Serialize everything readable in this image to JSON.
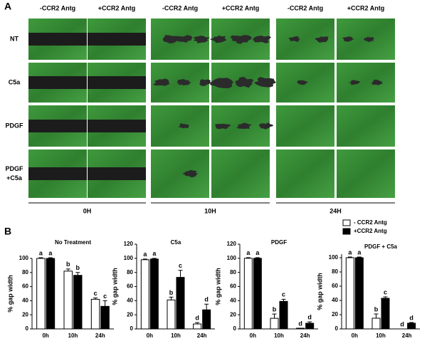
{
  "panel_a": {
    "label": "A",
    "column_headers": [
      "-CCR2 Antg",
      "+CCR2 Antg",
      "-CCR2 Antg",
      "+CCR2 Antg",
      "-CCR2 Antg",
      "+CCR2 Antg"
    ],
    "row_labels": [
      "NT",
      "C5a",
      "PDGF",
      "PDGF\n+C5a"
    ],
    "time_labels": [
      "0H",
      "10H",
      "24H"
    ]
  },
  "panel_b": {
    "label": "B"
  },
  "chart_data": [
    {
      "type": "bar",
      "title": "No Treatment",
      "y_label": "% gap width",
      "categories": [
        "0h",
        "10h",
        "24h"
      ],
      "ylim": [
        0,
        100
      ],
      "yticks": [
        0,
        20,
        40,
        60,
        80,
        100
      ],
      "series": [
        {
          "color": "#ffffff",
          "values": [
            100,
            82,
            42
          ],
          "errors": [
            1,
            3,
            2
          ],
          "letters": [
            "a",
            "b",
            "c"
          ]
        },
        {
          "color": "#000000",
          "values": [
            100,
            76,
            32
          ],
          "errors": [
            1,
            4,
            8
          ],
          "letters": [
            "a",
            "b",
            "c"
          ]
        }
      ]
    },
    {
      "type": "bar",
      "title": "C5a",
      "y_label": "% gap width",
      "categories": [
        "0h",
        "10h",
        "24h"
      ],
      "ylim": [
        0,
        120
      ],
      "yticks": [
        0,
        20,
        40,
        60,
        80,
        100,
        120
      ],
      "series": [
        {
          "color": "#ffffff",
          "values": [
            98,
            41,
            7
          ],
          "errors": [
            1,
            4,
            2
          ],
          "letters": [
            "a",
            "b",
            "d"
          ]
        },
        {
          "color": "#000000",
          "values": [
            99,
            73,
            27
          ],
          "errors": [
            1,
            10,
            8
          ],
          "letters": [
            "a",
            "c",
            "d"
          ]
        }
      ]
    },
    {
      "type": "bar",
      "title": "PDGF",
      "y_label": "% gap width",
      "categories": [
        "0h",
        "10h",
        "24h"
      ],
      "ylim": [
        0,
        120
      ],
      "yticks": [
        0,
        20,
        40,
        60,
        80,
        100,
        120
      ],
      "series": [
        {
          "color": "#ffffff",
          "values": [
            100,
            15,
            1
          ],
          "errors": [
            1,
            6,
            0
          ],
          "letters": [
            "a",
            "b",
            "d"
          ]
        },
        {
          "color": "#000000",
          "values": [
            100,
            39,
            8
          ],
          "errors": [
            1,
            3,
            2
          ],
          "letters": [
            "a",
            "c",
            "d"
          ]
        }
      ]
    },
    {
      "type": "bar",
      "title": "PDGF + C5a",
      "y_label": "% gap width",
      "categories": [
        "0h",
        "10h",
        "24h"
      ],
      "ylim": [
        0,
        105
      ],
      "yticks": [
        0,
        20,
        40,
        60,
        80,
        100
      ],
      "series": [
        {
          "name": "- CCR2 Antg",
          "color": "#ffffff",
          "values": [
            100,
            15,
            0
          ],
          "errors": [
            1,
            6,
            0
          ],
          "letters": [
            "a",
            "b",
            "d"
          ]
        },
        {
          "name": "+CCR2 Antg",
          "color": "#000000",
          "values": [
            100,
            43,
            8
          ],
          "errors": [
            1,
            2,
            1
          ],
          "letters": [
            "a",
            "c",
            "d"
          ]
        }
      ]
    }
  ]
}
